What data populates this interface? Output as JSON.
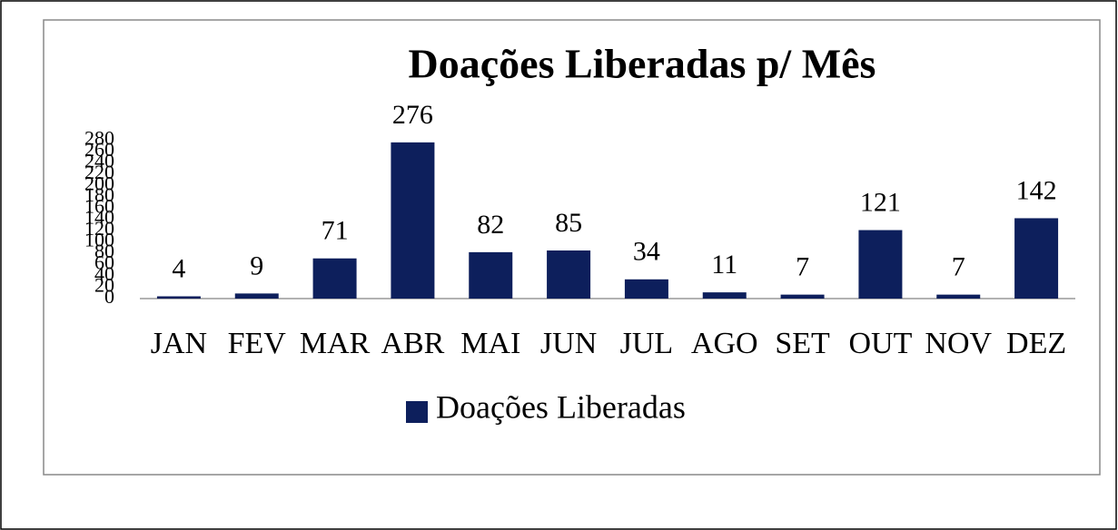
{
  "chart_data": {
    "type": "bar",
    "title": "Doações Liberadas p/ Mês",
    "categories": [
      "JAN",
      "FEV",
      "MAR",
      "ABR",
      "MAI",
      "JUN",
      "JUL",
      "AGO",
      "SET",
      "OUT",
      "NOV",
      "DEZ"
    ],
    "series": [
      {
        "name": "Doações Liberadas",
        "color": "#0d1f5c",
        "values": [
          4,
          9,
          71,
          276,
          82,
          85,
          34,
          11,
          7,
          121,
          7,
          142
        ]
      }
    ],
    "ylim": [
      0,
      280
    ],
    "yticks": [
      0,
      20,
      40,
      60,
      80,
      100,
      120,
      140,
      160,
      180,
      200,
      220,
      240,
      260,
      280
    ],
    "grid": false,
    "legend": "bottom"
  }
}
